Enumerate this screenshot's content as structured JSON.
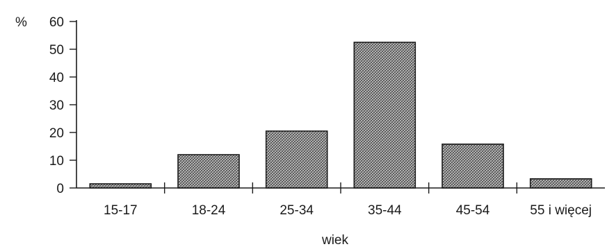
{
  "chart_data": {
    "type": "bar",
    "categories": [
      "15-17",
      "18-24",
      "25-34",
      "35-44",
      "45-54",
      "55 i więcej"
    ],
    "values": [
      1.5,
      12,
      20.5,
      52.5,
      15.8,
      3.3
    ],
    "xlabel": "wiek",
    "ylabel": "%",
    "ylim": [
      0,
      60
    ],
    "yticks": [
      0,
      10,
      20,
      30,
      40,
      50,
      60
    ],
    "grid": false,
    "legend": "none",
    "colors": {
      "bar_fill": "#9a9a9a",
      "bar_stroke": "#1a1a1a",
      "axis": "#1a1a1a"
    }
  }
}
